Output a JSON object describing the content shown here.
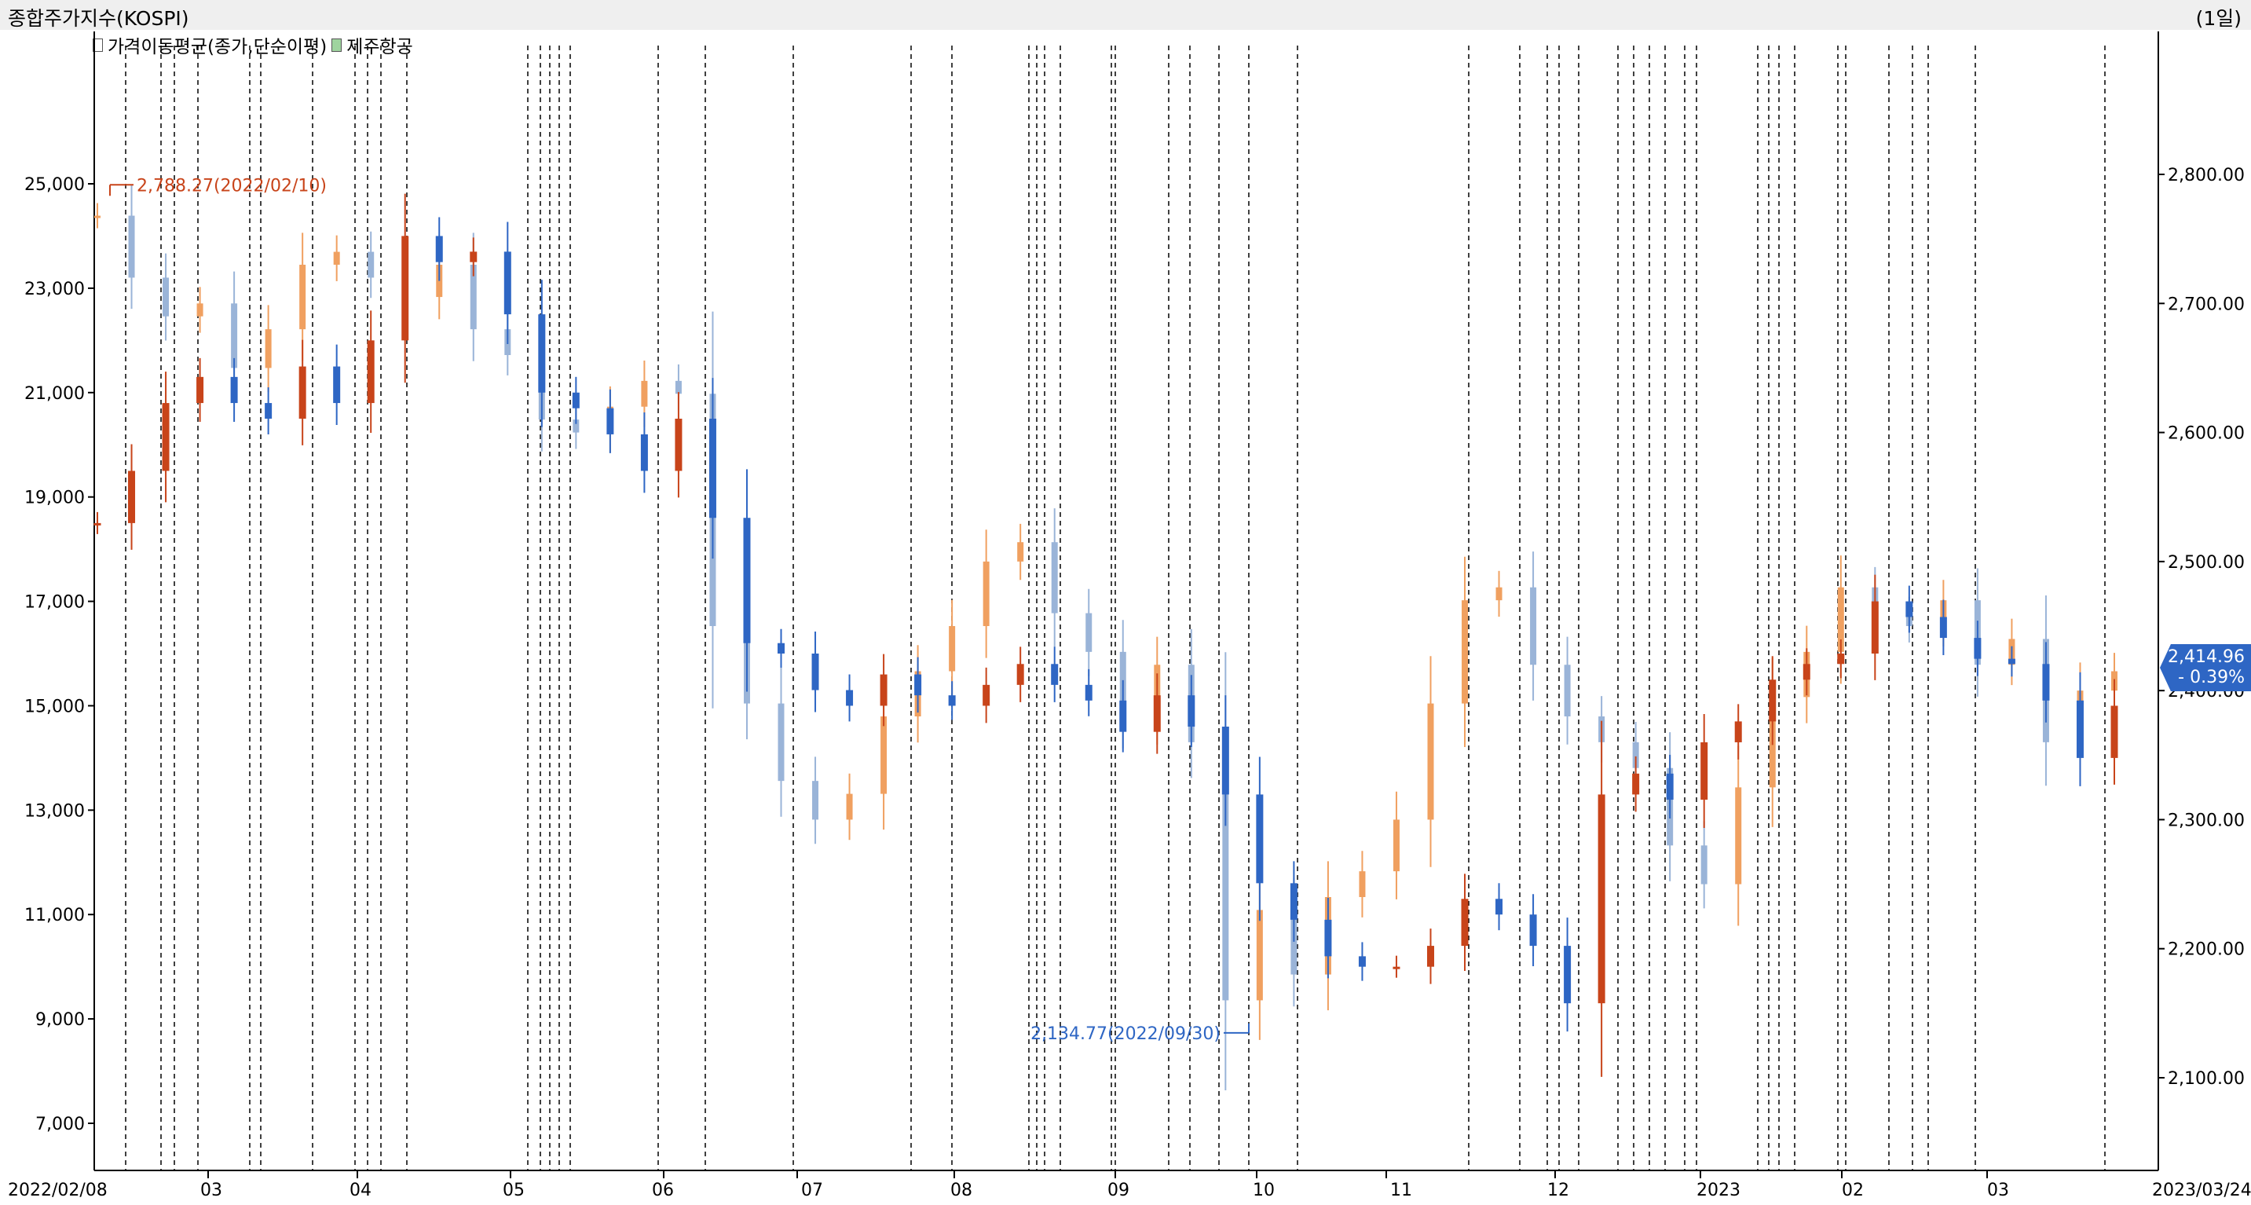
{
  "header": {
    "title": "종합주가지수(KOSPI)",
    "period": "(1일)"
  },
  "legend": {
    "items": [
      {
        "label": "가격이동평균(종가,단순이평)",
        "color": "#ffffff"
      },
      {
        "label": "제주항공",
        "color": "#9fd49f"
      }
    ]
  },
  "colors": {
    "up": "#c8441a",
    "down": "#2e66c4",
    "overlay_up": "#f0a060",
    "overlay_down": "#9ab4d8",
    "grid": "#000000"
  },
  "annotations": {
    "high_label": "2,788.27(2022/02/10)",
    "low_label": "2,134.77(2022/09/30)"
  },
  "current": {
    "price": "2,414.96",
    "change": "- 0.39%"
  },
  "chart_data": {
    "type": "candlestick",
    "left_axis": {
      "ticks": [
        "25,000",
        "23,000",
        "21,000",
        "19,000",
        "17,000",
        "15,000",
        "13,000",
        "11,000",
        "9,000",
        "7,000"
      ],
      "values": [
        25000,
        23000,
        21000,
        19000,
        17000,
        15000,
        13000,
        11000,
        9000,
        7000
      ]
    },
    "right_axis": {
      "ticks": [
        "2,800.00",
        "2,700.00",
        "2,600.00",
        "2,500.00",
        "2,400.00",
        "2,300.00",
        "2,200.00",
        "2,100.00"
      ],
      "values": [
        2800,
        2700,
        2600,
        2500,
        2400,
        2300,
        2200,
        2100
      ]
    },
    "x_labels": [
      "2022/02/08",
      "03",
      "04",
      "05",
      "06",
      "07",
      "08",
      "09",
      "10",
      "11",
      "12",
      "2023",
      "02",
      "03",
      "2023/03/24"
    ],
    "series": [
      {
        "name": "종합주가지수(KOSPI)",
        "axis": "right",
        "dates": [
          "2022-02-08",
          "2022-02-15",
          "2022-02-22",
          "2022-03-01",
          "2022-03-08",
          "2022-03-15",
          "2022-03-22",
          "2022-03-29",
          "2022-04-05",
          "2022-04-12",
          "2022-04-19",
          "2022-04-26",
          "2022-05-03",
          "2022-05-10",
          "2022-05-17",
          "2022-05-24",
          "2022-05-31",
          "2022-06-07",
          "2022-06-14",
          "2022-06-21",
          "2022-06-28",
          "2022-07-05",
          "2022-07-12",
          "2022-07-19",
          "2022-07-26",
          "2022-08-02",
          "2022-08-09",
          "2022-08-16",
          "2022-08-23",
          "2022-08-30",
          "2022-09-06",
          "2022-09-13",
          "2022-09-20",
          "2022-09-27",
          "2022-10-04",
          "2022-10-11",
          "2022-10-18",
          "2022-10-25",
          "2022-11-01",
          "2022-11-08",
          "2022-11-15",
          "2022-11-22",
          "2022-11-29",
          "2022-12-06",
          "2022-12-13",
          "2022-12-20",
          "2022-12-27",
          "2023-01-03",
          "2023-01-10",
          "2023-01-17",
          "2023-01-24",
          "2023-01-31",
          "2023-02-07",
          "2023-02-14",
          "2023-02-21",
          "2023-02-28",
          "2023-03-07",
          "2023-03-14",
          "2023-03-21",
          "2023-03-24"
        ],
        "close": [
          2768,
          2720,
          2690,
          2700,
          2650,
          2680,
          2730,
          2740,
          2720,
          2705,
          2730,
          2680,
          2660,
          2610,
          2600,
          2620,
          2640,
          2630,
          2450,
          2390,
          2330,
          2300,
          2320,
          2380,
          2415,
          2450,
          2500,
          2515,
          2460,
          2430,
          2380,
          2420,
          2360,
          2160,
          2230,
          2180,
          2240,
          2260,
          2300,
          2390,
          2470,
          2480,
          2420,
          2380,
          2360,
          2340,
          2280,
          2250,
          2325,
          2395,
          2430,
          2480,
          2460,
          2450,
          2470,
          2420,
          2440,
          2360,
          2400,
          2415
        ]
      },
      {
        "name": "제주항공",
        "axis": "left",
        "dates": [
          "2022-02-08",
          "2022-02-15",
          "2022-02-22",
          "2022-03-01",
          "2022-03-08",
          "2022-03-15",
          "2022-03-22",
          "2022-03-29",
          "2022-04-05",
          "2022-04-12",
          "2022-04-19",
          "2022-04-26",
          "2022-05-03",
          "2022-05-10",
          "2022-05-17",
          "2022-05-24",
          "2022-05-31",
          "2022-06-07",
          "2022-06-14",
          "2022-06-21",
          "2022-06-28",
          "2022-07-05",
          "2022-07-12",
          "2022-07-19",
          "2022-07-26",
          "2022-08-02",
          "2022-08-09",
          "2022-08-16",
          "2022-08-23",
          "2022-08-30",
          "2022-09-06",
          "2022-09-13",
          "2022-09-20",
          "2022-09-27",
          "2022-10-04",
          "2022-10-11",
          "2022-10-18",
          "2022-10-25",
          "2022-11-01",
          "2022-11-08",
          "2022-11-15",
          "2022-11-22",
          "2022-11-29",
          "2022-12-06",
          "2022-12-13",
          "2022-12-20",
          "2022-12-27",
          "2023-01-03",
          "2023-01-10",
          "2023-01-17",
          "2023-01-24",
          "2023-01-31",
          "2023-02-07",
          "2023-02-14",
          "2023-02-21",
          "2023-02-28",
          "2023-03-07",
          "2023-03-14",
          "2023-03-21",
          "2023-03-24"
        ],
        "close": [
          18500,
          19500,
          20800,
          21300,
          20800,
          20500,
          21500,
          20800,
          22000,
          24000,
          23500,
          23700,
          22500,
          21000,
          20700,
          20200,
          19500,
          20500,
          18600,
          16200,
          16000,
          15300,
          15000,
          15600,
          15200,
          15000,
          15400,
          15800,
          15400,
          15100,
          14500,
          15200,
          14600,
          13300,
          11600,
          10900,
          10200,
          10000,
          10000,
          10400,
          11300,
          11000,
          10400,
          9300,
          13300,
          13700,
          13200,
          14300,
          14700,
          15500,
          15800,
          16000,
          17000,
          16700,
          16300,
          15900,
          15800,
          15100,
          14000,
          15000
        ]
      }
    ],
    "vertical_markers": true
  }
}
